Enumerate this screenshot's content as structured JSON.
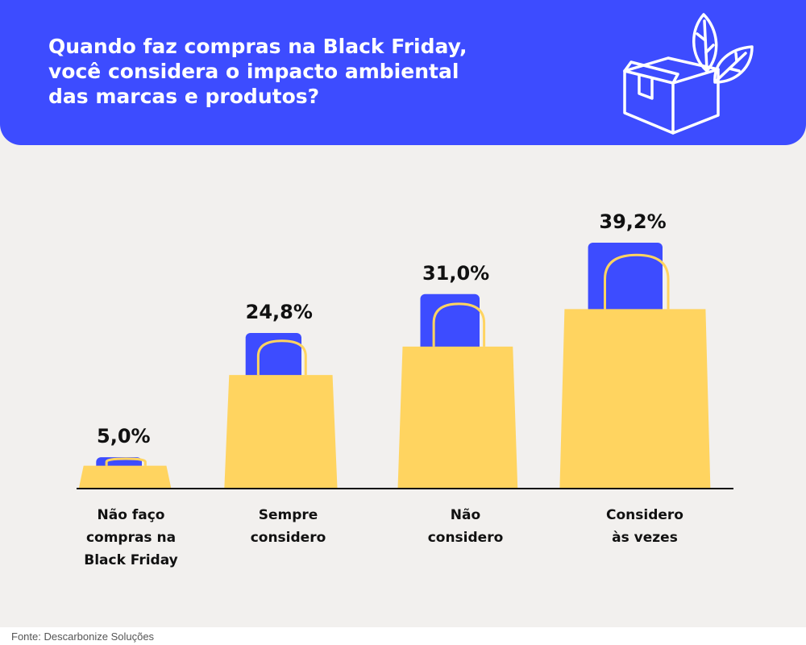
{
  "header": {
    "title_lines": [
      "Quando faz compras na Black Friday,",
      "você considera o impacto ambiental",
      "das marcas e produtos?"
    ],
    "icon": "box-with-leaves-icon"
  },
  "colors": {
    "header_bg": "#3d4cff",
    "bar_blue": "#3d4cff",
    "bag_yellow": "#ffd460",
    "panel_bg": "#f2f0ee"
  },
  "chart_data": {
    "type": "bar",
    "categories": [
      [
        "Não faço",
        "compras na",
        "Black Friday"
      ],
      [
        "Sempre",
        "considero"
      ],
      [
        "Não",
        "considero"
      ],
      [
        "Considero",
        "às vezes"
      ]
    ],
    "values": [
      5.0,
      24.8,
      31.0,
      39.2
    ],
    "value_labels": [
      "5,0%",
      "24,8%",
      "31,0%",
      "39,2%"
    ],
    "unit": "%",
    "ylim": [
      0,
      40
    ],
    "grid": false,
    "legend": "none"
  },
  "source": "Fonte: Descarbonize Soluções"
}
